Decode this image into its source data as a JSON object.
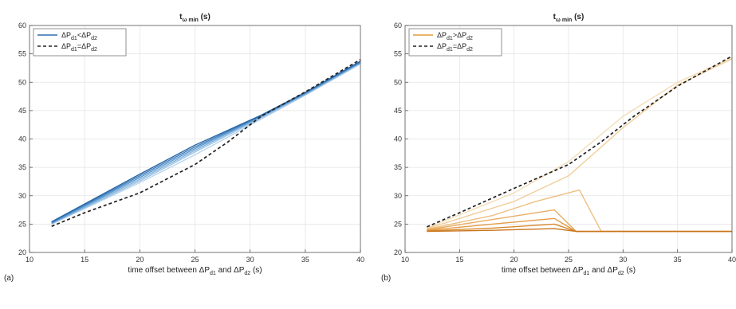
{
  "chart_data": [
    {
      "type": "line",
      "panel_label": "(a)",
      "title": {
        "main": "t",
        "sub": "ω min",
        "suffix": " (s)"
      },
      "xlabel": {
        "pre": "time offset between ΔP",
        "sub1": "d1",
        "mid": " and ΔP",
        "sub2": "d2",
        "post": " (s)"
      },
      "ylabel": "",
      "xlim": [
        10,
        40
      ],
      "ylim": [
        20,
        60
      ],
      "xticks": [
        10,
        15,
        20,
        25,
        30,
        35,
        40
      ],
      "yticks": [
        20,
        25,
        30,
        35,
        40,
        45,
        50,
        55,
        60
      ],
      "grid": true,
      "legend_position": "top-left",
      "legend": [
        {
          "pre": "ΔP",
          "s1": "d1",
          "mid": "<ΔP",
          "s2": "d2",
          "style": "solid",
          "color": "#2f6fae"
        },
        {
          "pre": "ΔP",
          "s1": "d1",
          "mid": "=ΔP",
          "s2": "d2",
          "style": "dashed",
          "color": "#222222"
        }
      ],
      "series": [
        {
          "style": "solid",
          "color": "#b9d6ee",
          "x": [
            12,
            20,
            25,
            31,
            35,
            40
          ],
          "y": [
            25.0,
            32.3,
            37.2,
            43.5,
            47.7,
            53.2
          ]
        },
        {
          "style": "solid",
          "color": "#9cc3e6",
          "x": [
            12,
            20,
            25,
            31,
            35,
            40
          ],
          "y": [
            25.0,
            32.6,
            37.7,
            43.7,
            47.8,
            53.3
          ]
        },
        {
          "style": "solid",
          "color": "#7eb0dc",
          "x": [
            12,
            20,
            25,
            31,
            35,
            40
          ],
          "y": [
            25.1,
            32.9,
            38.0,
            43.9,
            47.9,
            53.4
          ]
        },
        {
          "style": "solid",
          "color": "#5b97cd",
          "x": [
            12,
            20,
            25,
            31,
            35,
            40
          ],
          "y": [
            25.2,
            33.2,
            38.3,
            44.0,
            48.0,
            53.5
          ]
        },
        {
          "style": "solid",
          "color": "#3f80bd",
          "x": [
            12,
            20,
            25,
            31,
            35,
            40
          ],
          "y": [
            25.3,
            33.5,
            38.6,
            44.1,
            48.1,
            53.6
          ]
        },
        {
          "style": "solid",
          "color": "#2a66a6",
          "x": [
            12,
            20,
            25,
            31,
            35,
            40
          ],
          "y": [
            25.4,
            33.8,
            38.9,
            44.2,
            48.2,
            53.7
          ]
        },
        {
          "style": "dashed",
          "color": "#222222",
          "x": [
            12,
            15,
            20,
            25,
            28,
            31,
            35,
            40
          ],
          "y": [
            24.6,
            27.0,
            30.5,
            35.5,
            39.5,
            44.0,
            48.3,
            54.0
          ]
        }
      ]
    },
    {
      "type": "line",
      "panel_label": "(b)",
      "title": {
        "main": "t",
        "sub": "ω min",
        "suffix": " (s)"
      },
      "xlabel": {
        "pre": "time offset between ΔP",
        "sub1": "d1",
        "mid": " and ΔP",
        "sub2": "d2",
        "post": " (s)"
      },
      "ylabel": "",
      "xlim": [
        10,
        40
      ],
      "ylim": [
        20,
        60
      ],
      "xticks": [
        10,
        15,
        20,
        25,
        30,
        35,
        40
      ],
      "yticks": [
        20,
        25,
        30,
        35,
        40,
        45,
        50,
        55,
        60
      ],
      "grid": true,
      "legend_position": "top-left",
      "legend": [
        {
          "pre": "ΔP",
          "s1": "d1",
          "mid": ">ΔP",
          "s2": "d2",
          "style": "solid",
          "color": "#e49a3c"
        },
        {
          "pre": "ΔP",
          "s1": "d1",
          "mid": "=ΔP",
          "s2": "d2",
          "style": "dashed",
          "color": "#222222"
        }
      ],
      "series": [
        {
          "style": "solid",
          "color": "#f4ddb8",
          "x": [
            12,
            20,
            25,
            30,
            35,
            40
          ],
          "y": [
            24.3,
            30.5,
            36.0,
            44.0,
            50.0,
            54.3
          ]
        },
        {
          "style": "solid",
          "color": "#f1cf9c",
          "x": [
            12,
            20,
            25,
            30,
            35,
            40
          ],
          "y": [
            24.2,
            29.0,
            33.5,
            42.0,
            49.5,
            54.1
          ]
        },
        {
          "style": "solid",
          "color": "#eebf80",
          "x": [
            12,
            18,
            22,
            26,
            28,
            40
          ],
          "y": [
            24.1,
            26.5,
            29.0,
            31.0,
            23.7,
            23.7
          ]
        },
        {
          "style": "solid",
          "color": "#e9ad62",
          "x": [
            12,
            18,
            23.7,
            25.7,
            40
          ],
          "y": [
            24.0,
            25.8,
            27.5,
            23.7,
            23.7
          ]
        },
        {
          "style": "solid",
          "color": "#e39c47",
          "x": [
            12,
            18,
            23.7,
            25.7,
            40
          ],
          "y": [
            23.9,
            25.0,
            26.0,
            23.7,
            23.7
          ]
        },
        {
          "style": "solid",
          "color": "#d8892d",
          "x": [
            12,
            18,
            23.7,
            25.7,
            40
          ],
          "y": [
            23.8,
            24.3,
            25.0,
            23.7,
            23.7
          ]
        },
        {
          "style": "solid",
          "color": "#c8761c",
          "x": [
            12,
            18,
            23.7,
            25.7,
            40
          ],
          "y": [
            23.7,
            23.9,
            24.2,
            23.7,
            23.7
          ]
        },
        {
          "style": "dashed",
          "color": "#222222",
          "x": [
            12,
            15,
            20,
            25,
            28,
            31,
            35,
            40
          ],
          "y": [
            24.5,
            27.0,
            31.3,
            35.5,
            39.5,
            44.0,
            49.3,
            54.6
          ]
        }
      ]
    }
  ]
}
